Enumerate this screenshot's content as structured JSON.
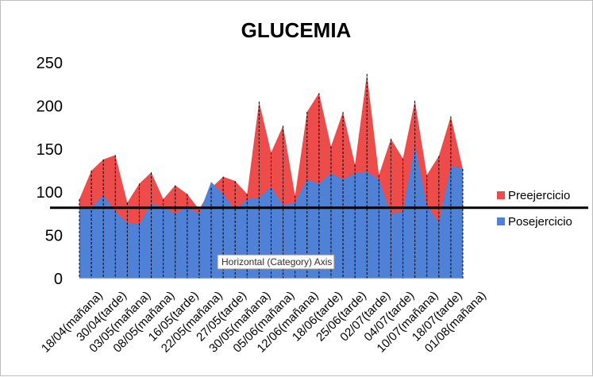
{
  "chart_data": {
    "type": "area",
    "title": "GLUCEMIA",
    "xlabel": "",
    "ylabel": "",
    "ylim": [
      0,
      250
    ],
    "yticks": [
      0,
      50,
      100,
      150,
      200,
      250
    ],
    "x_tick_labels": [
      "18/04(mañana)",
      "30/04(tarde)",
      "03/05(mañana)",
      "08/05(mañana)",
      "16/05(tarde)",
      "22/05(mañana)",
      "27/05(tarde)",
      "30/05(mañana)",
      "05/06(mañana)",
      "12/06(mañana)",
      "18/06(tarde)",
      "25/06(tarde)",
      "02/07(tarde)",
      "04/07(tarde)",
      "10/07(mañana)",
      "18/07(tarde)",
      "01/08(mañana)"
    ],
    "series": [
      {
        "name": "Preejercicio",
        "color": "#EE4B4B",
        "values": [
          92,
          125,
          138,
          143,
          88,
          110,
          123,
          92,
          108,
          98,
          80,
          105,
          118,
          113,
          98,
          205,
          146,
          177,
          96,
          193,
          215,
          153,
          193,
          132,
          237,
          120,
          162,
          139,
          206,
          120,
          142,
          188,
          127
        ]
      },
      {
        "name": "Posejercicio",
        "color": "#4F81D6",
        "values": [
          82,
          82,
          97,
          78,
          65,
          63,
          87,
          83,
          75,
          83,
          75,
          112,
          98,
          80,
          92,
          94,
          106,
          85,
          88,
          115,
          110,
          122,
          115,
          122,
          124,
          115,
          75,
          78,
          155,
          85,
          65,
          130,
          128
        ]
      }
    ],
    "reference_line": {
      "value": 82,
      "color": "#000000"
    },
    "legend_position": "right",
    "tooltip": "Horizontal (Category) Axis"
  }
}
